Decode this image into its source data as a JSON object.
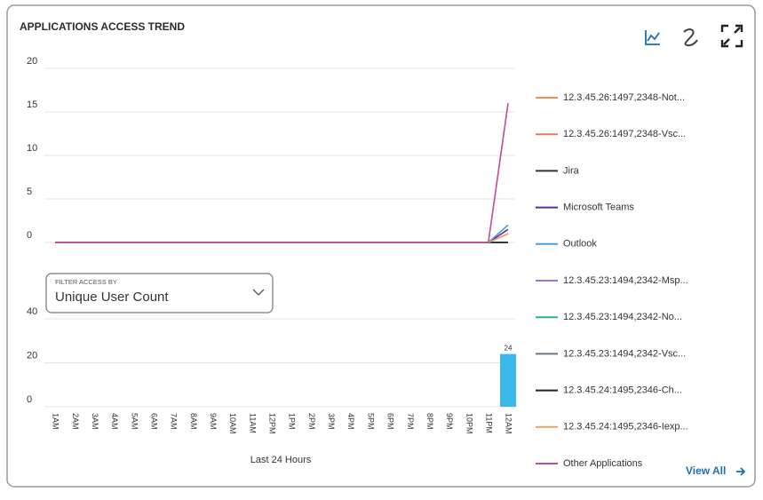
{
  "header": {
    "title": "APPLICATIONS ACCESS TREND"
  },
  "filter": {
    "label": "FILTER ACCESS BY",
    "value": "Unique User Count"
  },
  "view_all": "View All",
  "chart_data": [
    {
      "type": "line",
      "ylim": [
        0,
        20
      ],
      "yticks": [
        0,
        5,
        10,
        15,
        20
      ],
      "grid": true,
      "legend": "right",
      "series": [
        {
          "name": "12.3.45.26:1497,2348-Not...",
          "color": "#f28c55",
          "values": [
            0,
            0,
            0,
            0,
            0,
            0,
            0,
            0,
            0,
            0,
            0,
            0,
            0,
            0,
            0,
            0,
            0,
            0,
            0,
            0,
            0,
            0,
            0,
            1
          ]
        },
        {
          "name": "12.3.45.26:1497,2348-Vsc...",
          "color": "#e07a6a",
          "values": [
            0,
            0,
            0,
            0,
            0,
            0,
            0,
            0,
            0,
            0,
            0,
            0,
            0,
            0,
            0,
            0,
            0,
            0,
            0,
            0,
            0,
            0,
            0,
            1
          ]
        },
        {
          "name": "Jira",
          "color": "#333333",
          "values": [
            0,
            0,
            0,
            0,
            0,
            0,
            0,
            0,
            0,
            0,
            0,
            0,
            0,
            0,
            0,
            0,
            0,
            0,
            0,
            0,
            0,
            0,
            0,
            0
          ]
        },
        {
          "name": "Microsoft Teams",
          "color": "#5b2a9b",
          "values": [
            0,
            0,
            0,
            0,
            0,
            0,
            0,
            0,
            0,
            0,
            0,
            0,
            0,
            0,
            0,
            0,
            0,
            0,
            0,
            0,
            0,
            0,
            0,
            1.5
          ]
        },
        {
          "name": "Outlook",
          "color": "#4a9de0",
          "values": [
            0,
            0,
            0,
            0,
            0,
            0,
            0,
            0,
            0,
            0,
            0,
            0,
            0,
            0,
            0,
            0,
            0,
            0,
            0,
            0,
            0,
            0,
            0,
            2
          ]
        },
        {
          "name": "12.3.45.23:1494,2342-Msp...",
          "color": "#a070e8",
          "values": [
            0,
            0,
            0,
            0,
            0,
            0,
            0,
            0,
            0,
            0,
            0,
            0,
            0,
            0,
            0,
            0,
            0,
            0,
            0,
            0,
            0,
            0,
            0,
            0
          ]
        },
        {
          "name": "12.3.45.23:1494,2342-No...",
          "color": "#2bb38a",
          "values": [
            0,
            0,
            0,
            0,
            0,
            0,
            0,
            0,
            0,
            0,
            0,
            0,
            0,
            0,
            0,
            0,
            0,
            0,
            0,
            0,
            0,
            0,
            0,
            0
          ]
        },
        {
          "name": "12.3.45.23:1494,2342-Vsc...",
          "color": "#6b7780",
          "values": [
            0,
            0,
            0,
            0,
            0,
            0,
            0,
            0,
            0,
            0,
            0,
            0,
            0,
            0,
            0,
            0,
            0,
            0,
            0,
            0,
            0,
            0,
            0,
            0
          ]
        },
        {
          "name": "12.3.45.24:1495,2346-Ch...",
          "color": "#222222",
          "values": [
            0,
            0,
            0,
            0,
            0,
            0,
            0,
            0,
            0,
            0,
            0,
            0,
            0,
            0,
            0,
            0,
            0,
            0,
            0,
            0,
            0,
            0,
            0,
            0
          ]
        },
        {
          "name": "12.3.45.24:1495,2346-Iexp...",
          "color": "#e8a060",
          "values": [
            0,
            0,
            0,
            0,
            0,
            0,
            0,
            0,
            0,
            0,
            0,
            0,
            0,
            0,
            0,
            0,
            0,
            0,
            0,
            0,
            0,
            0,
            0,
            1
          ]
        },
        {
          "name": "Other Applications",
          "color": "#c04a9e",
          "values": [
            0,
            0,
            0,
            0,
            0,
            0,
            0,
            0,
            0,
            0,
            0,
            0,
            0,
            0,
            0,
            0,
            0,
            0,
            0,
            0,
            0,
            0,
            0,
            16
          ]
        }
      ]
    },
    {
      "type": "bar",
      "x_label": "Last 24 Hours",
      "ylim": [
        0,
        40
      ],
      "yticks": [
        0,
        20,
        40
      ],
      "grid": true,
      "color": "#3bb8ea",
      "categories": [
        "1AM",
        "2AM",
        "3AM",
        "4AM",
        "5AM",
        "6AM",
        "7AM",
        "8AM",
        "9AM",
        "10AM",
        "11AM",
        "12PM",
        "1PM",
        "2PM",
        "3PM",
        "4PM",
        "5PM",
        "6PM",
        "7PM",
        "8PM",
        "9PM",
        "10PM",
        "11PM",
        "12AM"
      ],
      "values": [
        0,
        0,
        0,
        0,
        0,
        0,
        0,
        0,
        0,
        0,
        0,
        0,
        0,
        0,
        0,
        0,
        0,
        0,
        0,
        0,
        0,
        0,
        0,
        24
      ]
    }
  ]
}
